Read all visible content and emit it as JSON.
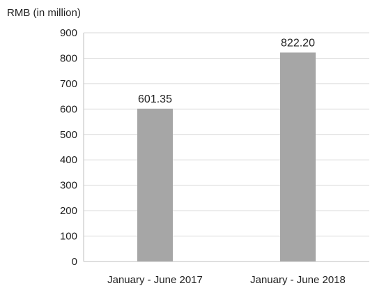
{
  "chart_data": {
    "type": "bar",
    "ylabel": "RMB (in million)",
    "categories": [
      "January - June 2017",
      "January - June 2018"
    ],
    "values": [
      601.35,
      822.2
    ],
    "value_labels": [
      "601.35",
      "822.20"
    ],
    "ylim": [
      0,
      900
    ],
    "yticks": [
      "0",
      "100",
      "200",
      "300",
      "400",
      "500",
      "600",
      "700",
      "800",
      "900"
    ],
    "grid": true,
    "bar_color": "#a6a6a6",
    "grid_color": "#d9d9d9",
    "axis_color": "#bfbfbf"
  }
}
